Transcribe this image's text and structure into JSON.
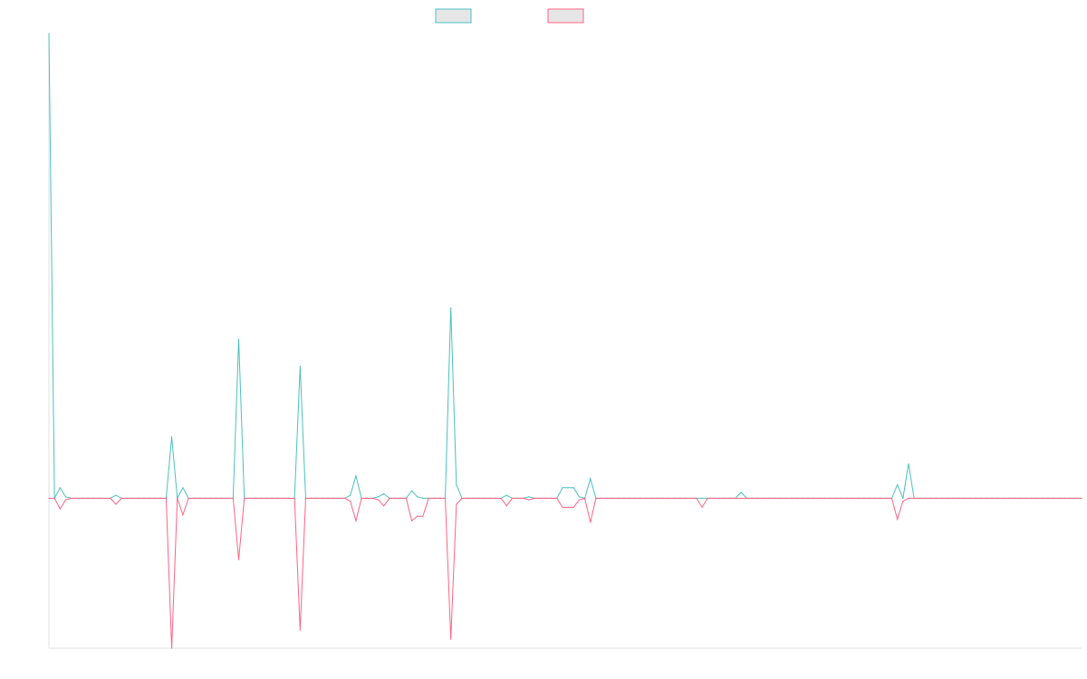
{
  "chart_data": {
    "type": "line",
    "title": "",
    "xlabel": "",
    "ylabel": "",
    "ylim": [
      -100,
      310
    ],
    "grid": false,
    "legend_placement": "top-center",
    "colors": {
      "series_0": "#4bc0c0",
      "series_1": "#ff6384",
      "swatch_fill": "#e6e6e6",
      "axis": "#e0e0e0"
    },
    "series": [
      {
        "values": [
          310,
          0,
          7,
          1,
          0,
          0,
          0,
          0,
          0,
          0,
          0,
          0,
          2,
          0,
          0,
          0,
          0,
          0,
          0,
          0,
          0,
          0,
          41,
          0,
          7,
          0,
          0,
          0,
          0,
          0,
          0,
          0,
          0,
          0,
          106,
          0,
          0,
          0,
          0,
          0,
          0,
          0,
          0,
          0,
          0,
          88,
          0,
          0,
          0,
          0,
          0,
          0,
          0,
          0,
          2,
          15,
          0,
          0,
          0,
          1,
          3,
          0,
          0,
          0,
          0,
          5,
          1,
          0,
          0,
          0,
          0,
          0,
          127,
          9,
          0,
          0,
          0,
          0,
          0,
          0,
          0,
          0,
          2,
          0,
          0,
          0,
          1,
          0,
          0,
          0,
          0,
          0,
          7,
          7,
          7,
          1,
          0,
          13,
          0,
          0,
          0,
          0,
          0,
          0,
          0,
          0,
          0,
          0,
          0,
          0,
          0,
          0,
          0,
          0,
          0,
          0,
          0,
          0,
          0,
          0,
          0,
          0,
          0,
          0,
          4,
          0,
          0,
          0,
          0,
          0,
          0,
          0,
          0,
          0,
          0,
          0,
          0,
          0,
          0,
          0,
          0,
          0,
          0,
          0,
          0,
          0,
          0,
          0,
          0,
          0,
          0,
          0,
          9,
          0,
          23,
          0,
          0,
          0,
          0,
          0,
          0,
          0,
          0,
          0,
          0,
          0,
          0,
          0,
          0,
          0,
          0,
          0,
          0,
          0,
          0,
          0,
          0,
          0,
          0,
          0,
          0,
          0,
          0,
          0,
          0,
          0
        ]
      },
      {
        "values": [
          0,
          0,
          -7,
          -1,
          0,
          0,
          0,
          0,
          0,
          0,
          0,
          0,
          -4,
          0,
          0,
          0,
          0,
          0,
          0,
          0,
          0,
          0,
          -100,
          0,
          -11,
          0,
          0,
          0,
          0,
          0,
          0,
          0,
          0,
          0,
          -41,
          0,
          0,
          0,
          0,
          0,
          0,
          0,
          0,
          0,
          0,
          -88,
          0,
          0,
          0,
          0,
          0,
          0,
          0,
          0,
          -2,
          -15,
          0,
          0,
          0,
          -1,
          -5,
          0,
          0,
          0,
          0,
          -15,
          -12,
          -12,
          0,
          0,
          0,
          0,
          -94,
          -4,
          0,
          0,
          0,
          0,
          0,
          0,
          0,
          0,
          -5,
          0,
          0,
          0,
          -1,
          0,
          0,
          0,
          0,
          0,
          -6,
          -6,
          -6,
          -1,
          0,
          -16,
          0,
          0,
          0,
          0,
          0,
          0,
          0,
          0,
          0,
          0,
          0,
          0,
          0,
          0,
          0,
          0,
          0,
          0,
          0,
          -6,
          0,
          0,
          0,
          0,
          0,
          0,
          0,
          0,
          0,
          0,
          0,
          0,
          0,
          0,
          0,
          0,
          0,
          0,
          0,
          0,
          0,
          0,
          0,
          0,
          0,
          0,
          0,
          0,
          0,
          0,
          0,
          0,
          0,
          0,
          -14,
          -2,
          0,
          0,
          0,
          0,
          0,
          0,
          0,
          0,
          0,
          0,
          0,
          0,
          0,
          0,
          0,
          0,
          0,
          0,
          0,
          0,
          0,
          0,
          0,
          0,
          0,
          0,
          0,
          0,
          0,
          0,
          0,
          0
        ]
      }
    ]
  }
}
